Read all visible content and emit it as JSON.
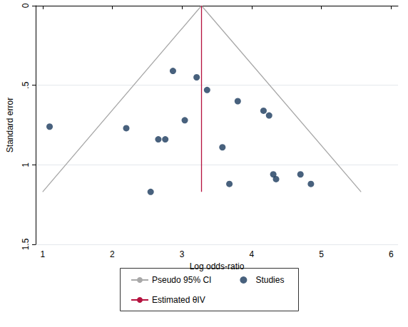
{
  "chart_data": {
    "type": "scatter",
    "x_label": "Log odds-ratio",
    "y_label": "Standard error",
    "xlim": [
      0.9,
      6.1
    ],
    "xticks": [
      1,
      2,
      3,
      4,
      5,
      6
    ],
    "ylim": [
      0,
      1.5
    ],
    "yticks": [
      0,
      {
        "value": 0.5,
        "label": ".5"
      },
      1,
      1.5
    ],
    "y_inverted": true,
    "grid": true,
    "legend": "bottom",
    "series": [
      {
        "name": "Pseudo 95% CI",
        "type": "line",
        "color": "#a8a8a8",
        "line_style": "solid",
        "x": [
          1.0,
          3.28,
          5.57
        ],
        "values": [
          1.17,
          0,
          1.17
        ]
      },
      {
        "name": "Studies",
        "type": "scatter",
        "color": "#1a3a5c",
        "marker": "circle",
        "x": [
          1.1,
          2.2,
          2.87,
          3.21,
          3.36,
          3.8,
          4.17,
          4.25,
          3.04,
          2.66,
          2.76,
          3.58,
          4.31,
          4.35,
          4.7,
          4.85,
          3.68,
          2.55
        ],
        "values": [
          0.76,
          0.77,
          0.41,
          0.45,
          0.53,
          0.6,
          0.66,
          0.69,
          0.72,
          0.84,
          0.84,
          0.89,
          1.06,
          1.09,
          1.06,
          1.12,
          1.12,
          1.17
        ]
      },
      {
        "name": "Estimated θIV",
        "type": "line",
        "color": "#b5123e",
        "line_style": "solid",
        "x": [
          3.28,
          3.28
        ],
        "values": [
          0,
          1.17
        ]
      }
    ]
  }
}
